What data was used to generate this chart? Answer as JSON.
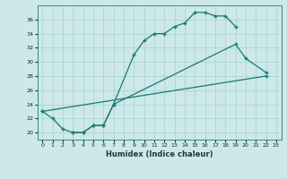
{
  "xlabel": "Humidex (Indice chaleur)",
  "bg_color": "#cce8ea",
  "line_color": "#1a7a6e",
  "grid_color": "#aacfd0",
  "xlim": [
    -0.5,
    23.5
  ],
  "ylim": [
    19,
    38
  ],
  "xticks": [
    0,
    1,
    2,
    3,
    4,
    5,
    6,
    7,
    8,
    9,
    10,
    11,
    12,
    13,
    14,
    15,
    16,
    17,
    18,
    19,
    20,
    21,
    22,
    23
  ],
  "yticks": [
    20,
    22,
    24,
    26,
    28,
    30,
    32,
    34,
    36
  ],
  "line1_x": [
    0,
    1,
    2,
    3,
    4,
    5,
    6,
    7,
    9,
    10,
    11,
    12,
    13,
    14,
    15,
    16,
    17,
    18,
    19
  ],
  "line1_y": [
    23,
    22,
    20.5,
    20,
    20,
    21,
    21,
    24,
    31,
    33,
    34,
    34,
    35,
    35.5,
    37,
    37,
    36.5,
    36.5,
    35
  ],
  "line2_x": [
    3,
    4,
    5,
    6,
    7,
    19,
    20,
    22
  ],
  "line2_y": [
    20,
    20,
    21,
    21,
    24,
    32.5,
    30.5,
    28.5
  ],
  "line3_x": [
    0,
    22
  ],
  "line3_y": [
    23,
    28
  ]
}
